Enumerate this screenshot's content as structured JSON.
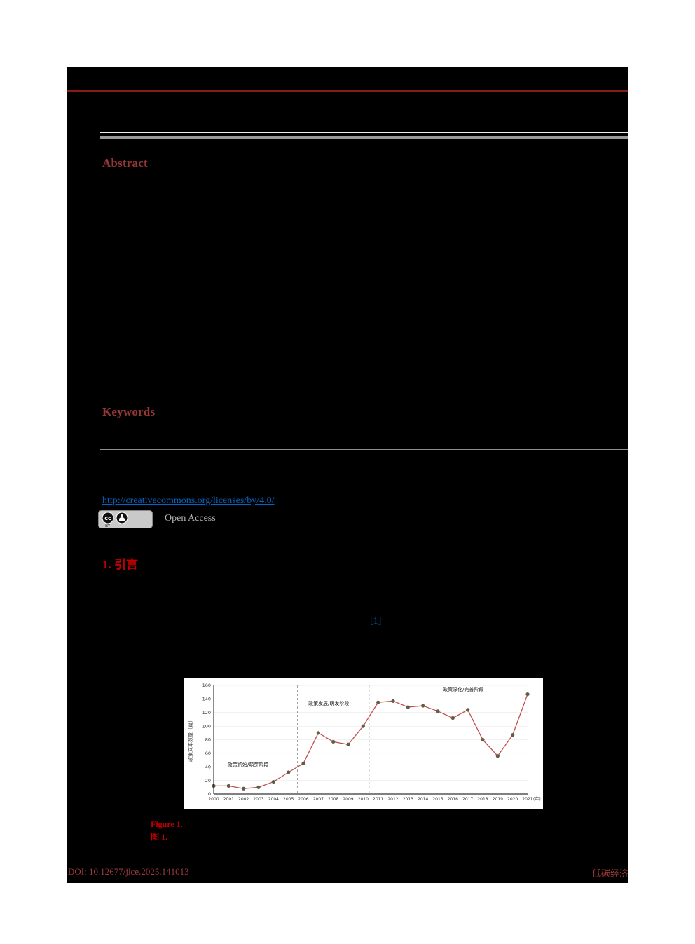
{
  "colors": {
    "page_bg": "#000000",
    "canvas_bg": "#ffffff",
    "top_rule_red": "#8B1A1A",
    "heading_maroon": "#953735",
    "section_red": "#C00000",
    "link_blue": "#0563C1",
    "footer_red": "#A03B3B"
  },
  "abstract": {
    "heading": "Abstract"
  },
  "keywords": {
    "heading": "Keywords"
  },
  "license": {
    "url": "http://creativecommons.org/licenses/by/4.0/",
    "badge": "cc-by",
    "badge_by_label": "BY",
    "open_access_label": "Open Access"
  },
  "introduction": {
    "heading": "1. 引言",
    "citation_ref": "[1]"
  },
  "figure": {
    "caption_en_label": "Figure 1.",
    "caption_zh_label": "图 1."
  },
  "footer": {
    "doi": "DOI: 10.12677/jlce.2025.141013",
    "journal_name": "低碳经济"
  },
  "chart_data": {
    "type": "line",
    "x": [
      2000,
      2001,
      2002,
      2003,
      2004,
      2005,
      2006,
      2007,
      2008,
      2009,
      2010,
      2011,
      2012,
      2013,
      2014,
      2015,
      2016,
      2017,
      2018,
      2019,
      2020,
      2021
    ],
    "values": [
      12,
      12,
      8,
      10,
      18,
      32,
      45,
      90,
      77,
      73,
      100,
      135,
      137,
      128,
      130,
      122,
      112,
      124,
      80,
      56,
      87,
      147
    ],
    "title": "",
    "ylabel": "政策文本数量（篇）",
    "x_axis_unit": "(年)",
    "ylim": [
      0,
      160
    ],
    "yticks": [
      0,
      20,
      40,
      60,
      80,
      100,
      120,
      140,
      160
    ],
    "grid": true,
    "phase_dividers_x": [
      5.6,
      10.4
    ],
    "annotations": [
      {
        "text": "政策初始/萌芽阶段",
        "x": 2.3,
        "y": 41
      },
      {
        "text": "政策发展/萌发阶段",
        "x": 7.7,
        "y": 131
      },
      {
        "text": "政策深化/完善阶段",
        "x": 16.7,
        "y": 152
      }
    ],
    "line_color": "#c0504d",
    "marker_color": "#5f5f46"
  }
}
